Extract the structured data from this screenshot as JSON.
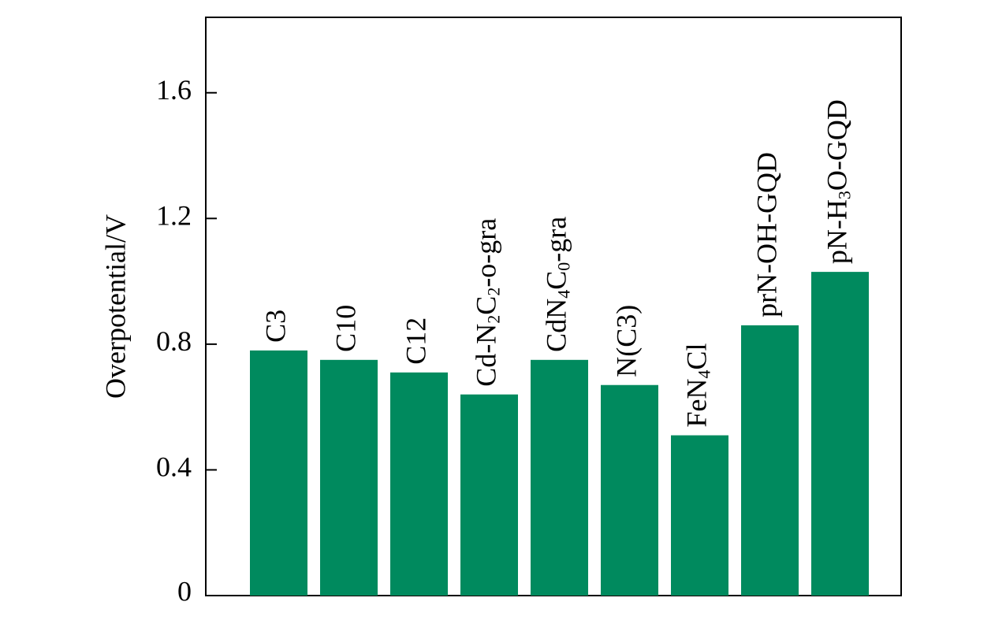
{
  "chart_data": {
    "type": "bar",
    "title": "",
    "xlabel": "",
    "ylabel": "Overpotential/V",
    "ylim": [
      0,
      1.84
    ],
    "yticks": [
      "0",
      "0.4",
      "0.8",
      "1.2",
      "1.6"
    ],
    "grid": false,
    "legend": "none",
    "bar_color": "#008a5e",
    "categories": [
      "C3",
      "C10",
      "C12",
      "Cd-N2C2-o-gra",
      "CdN4C0-gra",
      "N(C3)",
      "FeN4Cl",
      "prN-OH-GQD",
      "pN-H3O-GQD"
    ],
    "values": [
      0.78,
      0.75,
      0.71,
      0.64,
      0.75,
      0.67,
      0.51,
      0.86,
      1.03
    ],
    "label_parts": [
      [
        {
          "t": "C3"
        }
      ],
      [
        {
          "t": "C10"
        }
      ],
      [
        {
          "t": "C12"
        }
      ],
      [
        {
          "t": "Cd-N"
        },
        {
          "t": "2",
          "sub": true
        },
        {
          "t": "C"
        },
        {
          "t": "2",
          "sub": true
        },
        {
          "t": "-o-gra"
        }
      ],
      [
        {
          "t": "CdN"
        },
        {
          "t": "4",
          "sub": true
        },
        {
          "t": "C"
        },
        {
          "t": "0",
          "sub": true
        },
        {
          "t": "-gra"
        }
      ],
      [
        {
          "t": "N(C3)"
        }
      ],
      [
        {
          "t": "FeN"
        },
        {
          "t": "4",
          "sub": true
        },
        {
          "t": "Cl"
        }
      ],
      [
        {
          "t": "prN-OH-GQD"
        }
      ],
      [
        {
          "t": "pN-H"
        },
        {
          "t": "3",
          "sub": true
        },
        {
          "t": "O-GQD"
        }
      ]
    ]
  }
}
